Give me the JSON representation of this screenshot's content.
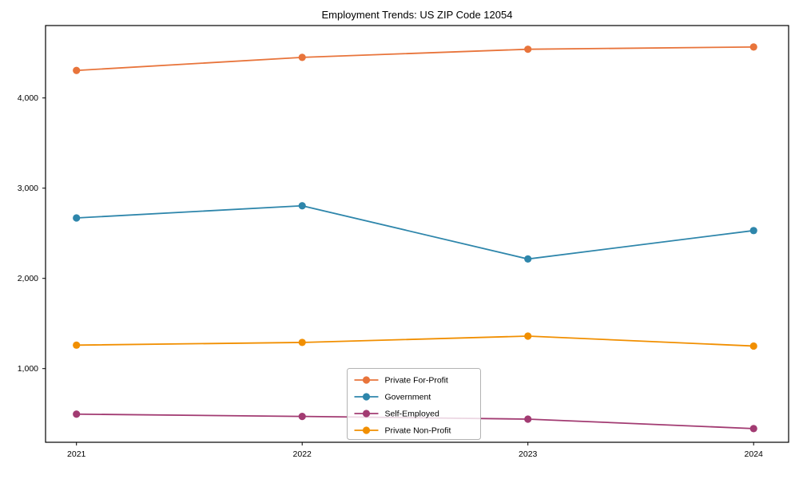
{
  "chart_data": {
    "type": "line",
    "title": "Employment Trends: US ZIP Code 12054",
    "categories": [
      "2021",
      "2022",
      "2023",
      "2024"
    ],
    "series": [
      {
        "name": "Private For-Profit",
        "color": "#E8743B",
        "values": [
          4305,
          4450,
          4540,
          4565
        ]
      },
      {
        "name": "Government",
        "color": "#2E86AB",
        "values": [
          2670,
          2805,
          2215,
          2530
        ]
      },
      {
        "name": "Self-Employed",
        "color": "#A23B72",
        "values": [
          495,
          470,
          440,
          335
        ]
      },
      {
        "name": "Private Non-Profit",
        "color": "#F18F01",
        "values": [
          1260,
          1290,
          1360,
          1250
        ]
      }
    ],
    "yticks": [
      1000,
      2000,
      3000,
      4000
    ],
    "ytick_labels": [
      "1,000",
      "2,000",
      "3,000",
      "4,000"
    ],
    "ylim": [
      180,
      4800
    ],
    "xlabel": "",
    "ylabel": "",
    "grid": false,
    "legend_position": "lower-center-inside",
    "marker": "circle",
    "axis_color": "#000000",
    "legend_border_color": "#b3b3b3"
  }
}
